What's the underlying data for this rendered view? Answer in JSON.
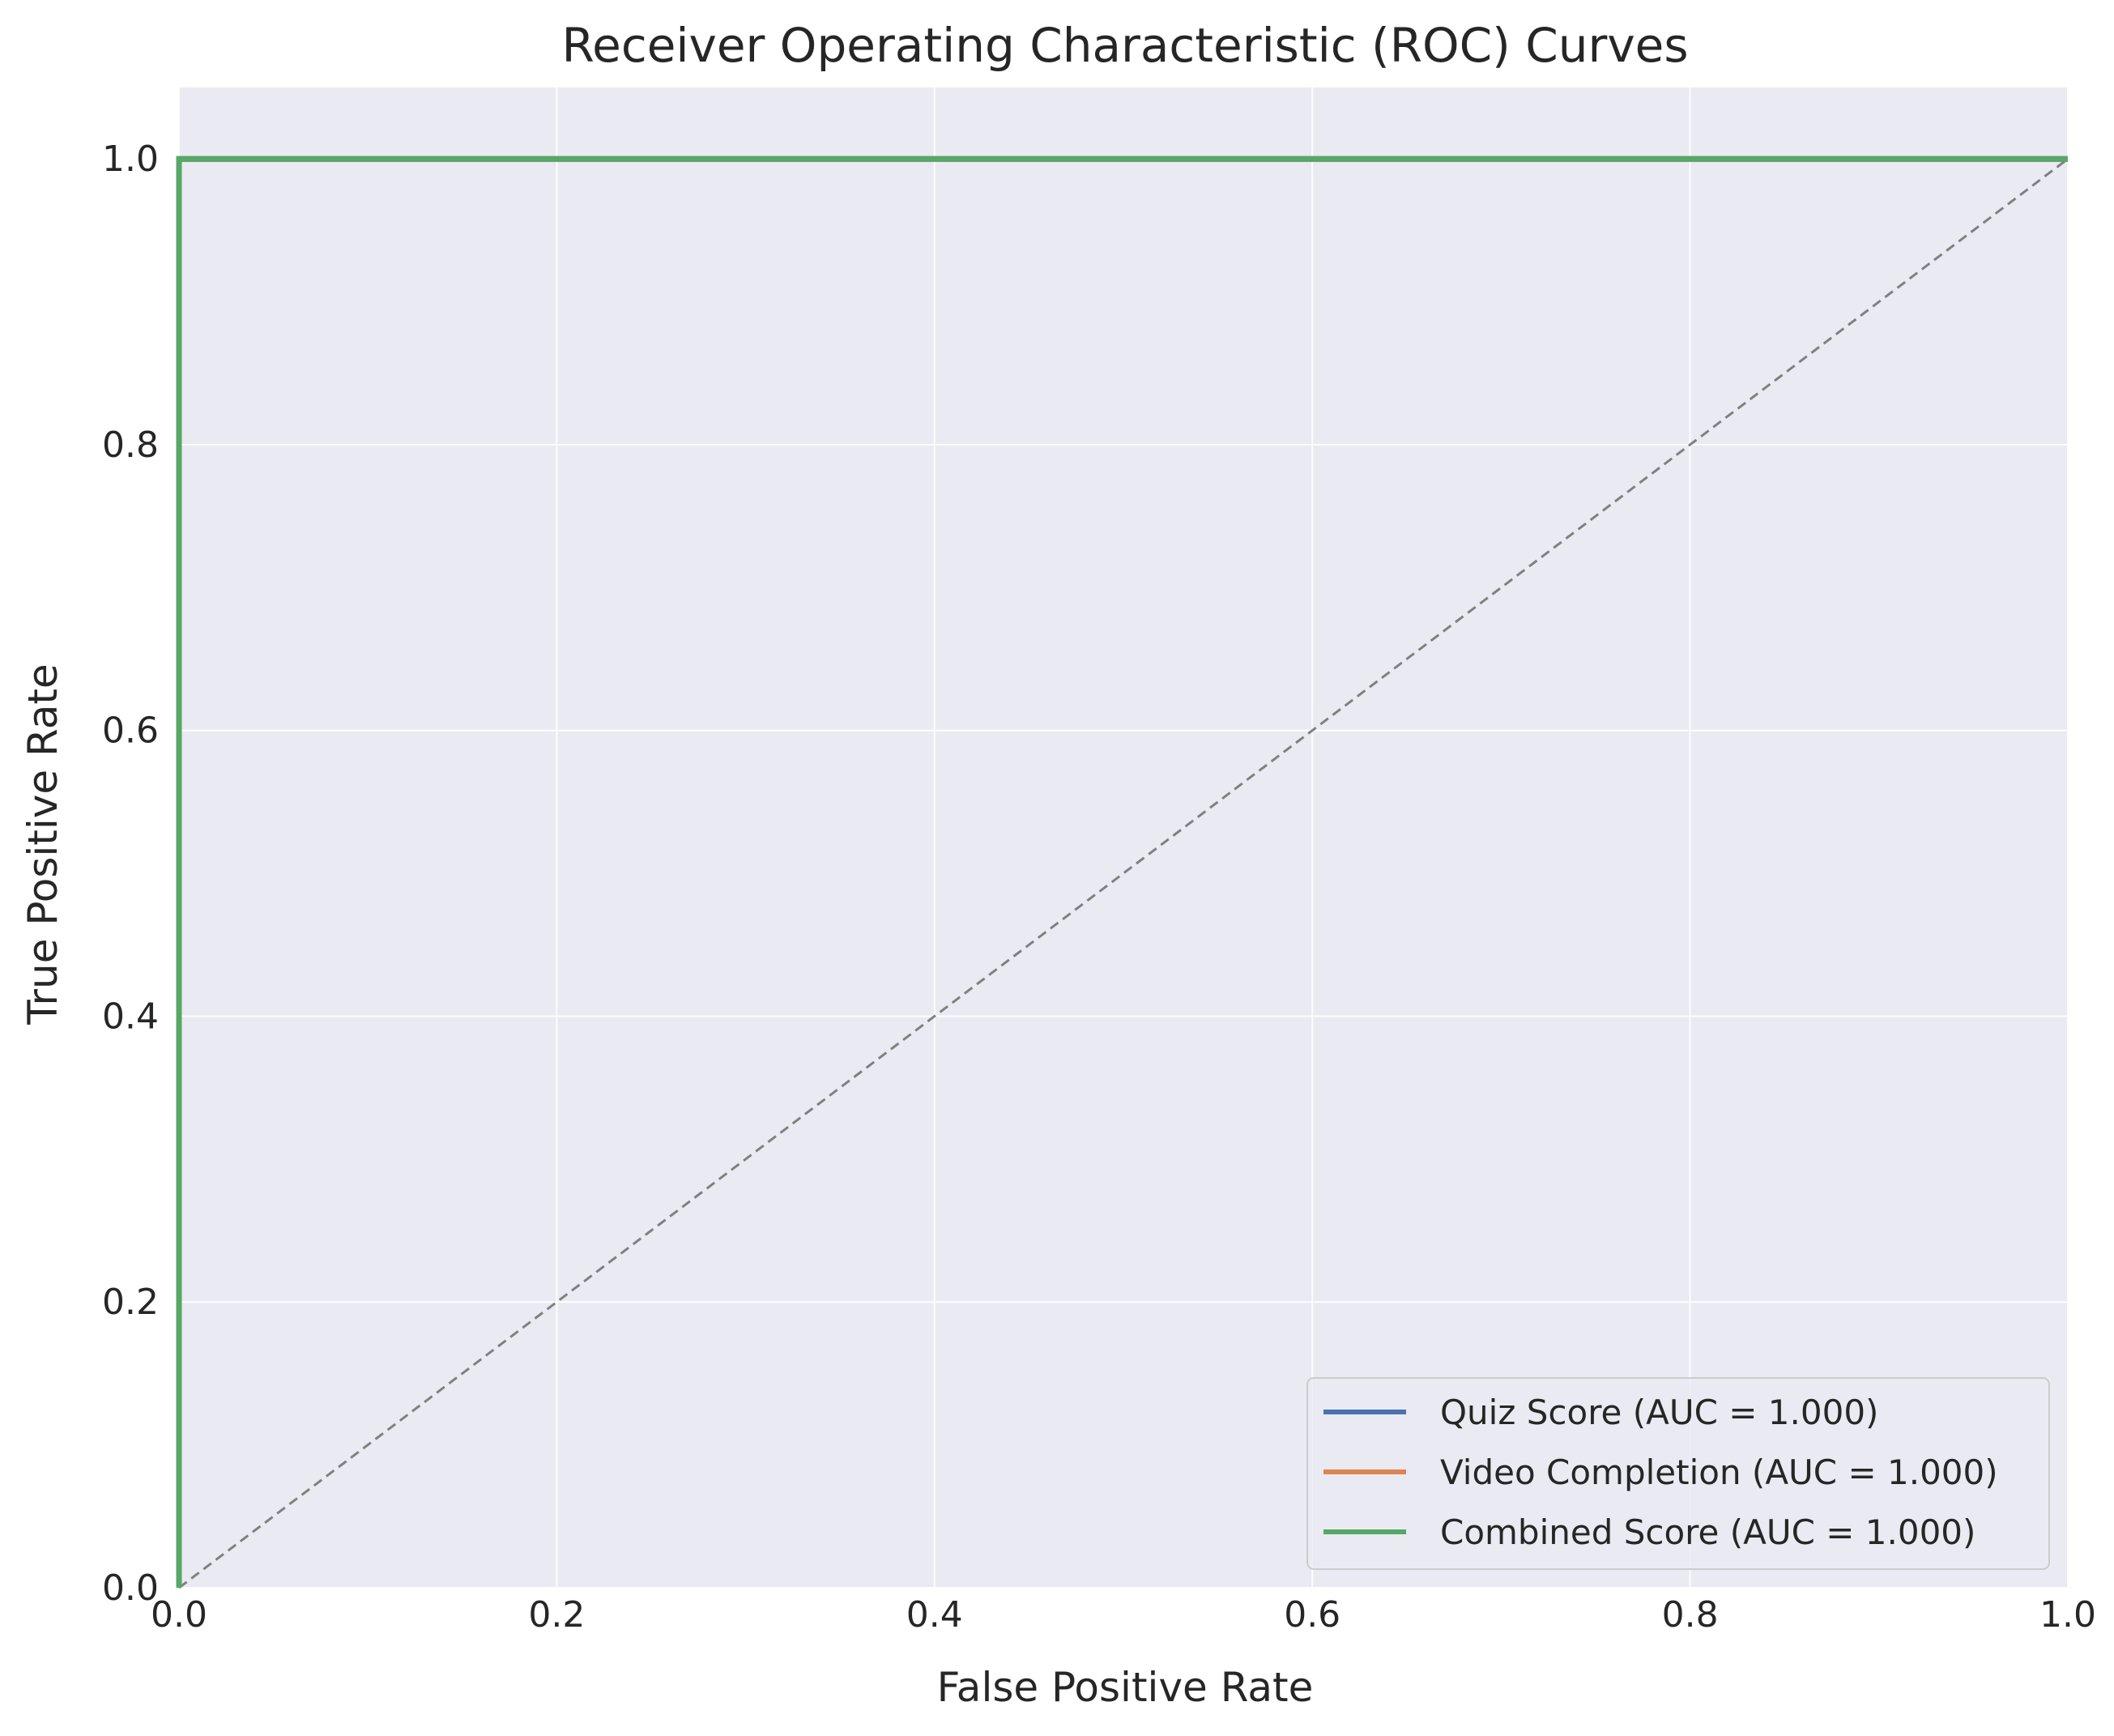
{
  "chart_data": {
    "type": "line",
    "title": "Receiver Operating Characteristic (ROC) Curves",
    "xlabel": "False Positive Rate",
    "ylabel": "True Positive Rate",
    "xlim": [
      0.0,
      1.0
    ],
    "ylim": [
      0.0,
      1.05
    ],
    "xticks": [
      "0.0",
      "0.2",
      "0.4",
      "0.6",
      "0.8",
      "1.0"
    ],
    "yticks": [
      "0.0",
      "0.2",
      "0.4",
      "0.6",
      "0.8",
      "1.0"
    ],
    "xtick_values": [
      0.0,
      0.2,
      0.4,
      0.6,
      0.8,
      1.0
    ],
    "ytick_values": [
      0.0,
      0.2,
      0.4,
      0.6,
      0.8,
      1.0
    ],
    "grid": true,
    "legend_position": "lower right",
    "background": "#eaeaf2",
    "series": [
      {
        "name": "Quiz Score (AUC = 1.000)",
        "color": "#4c72b0",
        "x": [
          0.0,
          0.0,
          1.0
        ],
        "y": [
          0.0,
          1.0,
          1.0
        ]
      },
      {
        "name": "Video Completion (AUC = 1.000)",
        "color": "#dd8452",
        "x": [
          0.0,
          0.0,
          1.0
        ],
        "y": [
          0.0,
          1.0,
          1.0
        ]
      },
      {
        "name": "Combined Score (AUC = 1.000)",
        "color": "#55a868",
        "x": [
          0.0,
          0.0,
          1.0
        ],
        "y": [
          0.0,
          1.0,
          1.0
        ]
      }
    ],
    "reference_line": {
      "color": "#808080",
      "style": "dashed",
      "x": [
        0.0,
        1.0
      ],
      "y": [
        0.0,
        1.0
      ]
    }
  }
}
